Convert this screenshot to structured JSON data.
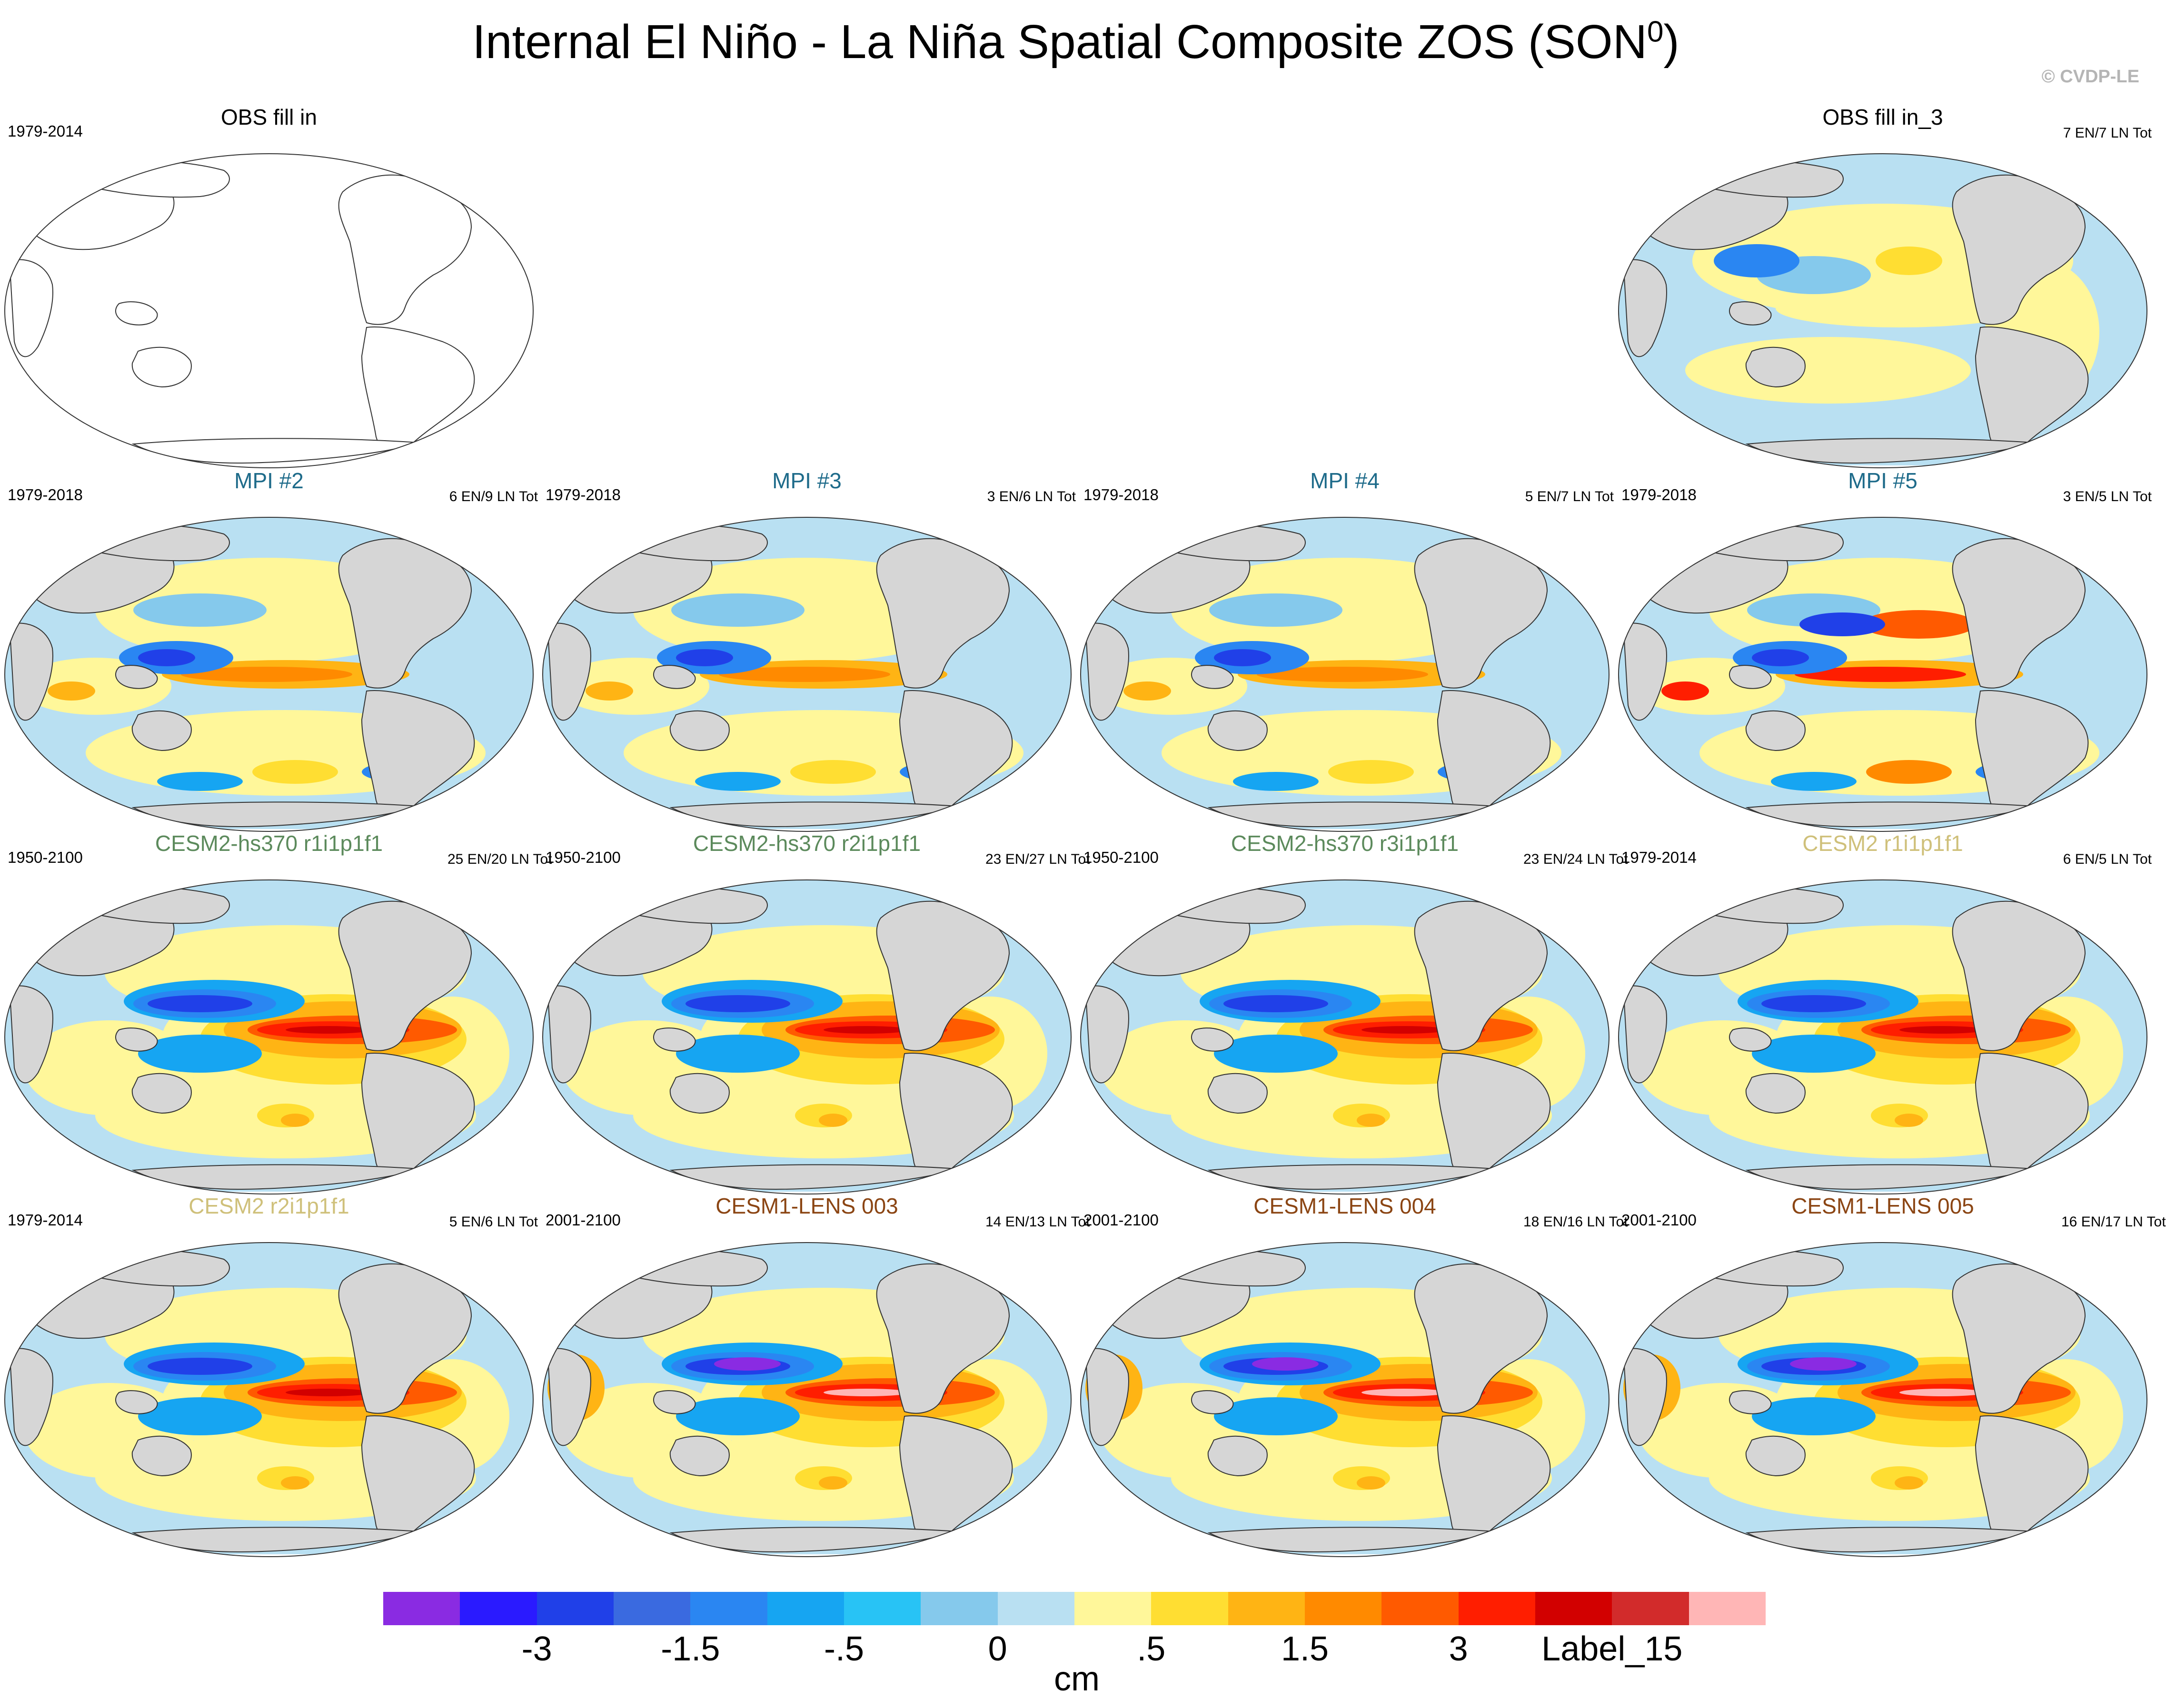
{
  "title": "Internal El Niño - La Niña Spatial Composite ZOS (SON",
  "title_sup": "0",
  "title_end": ")",
  "credit": "© CVDP-LE",
  "colors": {
    "title_obs": "#000000",
    "title_mpi": "#1e6b8a",
    "title_cesm2hs": "#5c8a5c",
    "title_cesm2": "#cfc07a",
    "title_lens": "#8b4513",
    "land": "#d6d6d6"
  },
  "panels": [
    {
      "id": "obs-fill-in",
      "title": "OBS fill in",
      "period": "1979-2014",
      "count": "",
      "color": "title_obs",
      "style": "empty",
      "row": 0,
      "col": 0
    },
    {
      "id": "obs-fill-in-3",
      "title": "OBS fill in_3",
      "period": "",
      "count": "7 EN/7 LN Tot",
      "color": "title_obs",
      "style": "weak",
      "row": 0,
      "col": 3
    },
    {
      "id": "mpi-2",
      "title": "MPI #2",
      "period": "1979-2018",
      "count": "6 EN/9 LN Tot",
      "color": "title_mpi",
      "style": "mpi",
      "row": 1,
      "col": 0
    },
    {
      "id": "mpi-3",
      "title": "MPI #3",
      "period": "1979-2018",
      "count": "3 EN/6 LN Tot",
      "color": "title_mpi",
      "style": "mpi",
      "row": 1,
      "col": 1
    },
    {
      "id": "mpi-4",
      "title": "MPI #4",
      "period": "1979-2018",
      "count": "5 EN/7 LN Tot",
      "color": "title_mpi",
      "style": "mpi",
      "row": 1,
      "col": 2
    },
    {
      "id": "mpi-5",
      "title": "MPI #5",
      "period": "1979-2018",
      "count": "3 EN/5 LN Tot",
      "color": "title_mpi",
      "style": "mpi-strong",
      "row": 1,
      "col": 3
    },
    {
      "id": "cesm2-hs370-r1",
      "title": "CESM2-hs370 r1i1p1f1",
      "period": "1950-2100",
      "count": "25 EN/20 LN Tot",
      "color": "title_cesm2hs",
      "style": "cesm",
      "row": 2,
      "col": 0
    },
    {
      "id": "cesm2-hs370-r2",
      "title": "CESM2-hs370 r2i1p1f1",
      "period": "1950-2100",
      "count": "23 EN/27 LN Tot",
      "color": "title_cesm2hs",
      "style": "cesm",
      "row": 2,
      "col": 1
    },
    {
      "id": "cesm2-hs370-r3",
      "title": "CESM2-hs370 r3i1p1f1",
      "period": "1950-2100",
      "count": "23 EN/24 LN Tot",
      "color": "title_cesm2hs",
      "style": "cesm",
      "row": 2,
      "col": 2
    },
    {
      "id": "cesm2-r1",
      "title": "CESM2 r1i1p1f1",
      "period": "1979-2014",
      "count": "6 EN/5 LN Tot",
      "color": "title_cesm2",
      "style": "cesm",
      "row": 2,
      "col": 3
    },
    {
      "id": "cesm2-r2",
      "title": "CESM2 r2i1p1f1",
      "period": "1979-2014",
      "count": "5 EN/6 LN Tot",
      "color": "title_cesm2",
      "style": "cesm",
      "row": 3,
      "col": 0
    },
    {
      "id": "cesm1-lens-003",
      "title": "CESM1-LENS 003",
      "period": "2001-2100",
      "count": "14 EN/13 LN Tot",
      "color": "title_lens",
      "style": "lens",
      "row": 3,
      "col": 1
    },
    {
      "id": "cesm1-lens-004",
      "title": "CESM1-LENS 004",
      "period": "2001-2100",
      "count": "18 EN/16 LN Tot",
      "color": "title_lens",
      "style": "lens",
      "row": 3,
      "col": 2
    },
    {
      "id": "cesm1-lens-005",
      "title": "CESM1-LENS 005",
      "period": "2001-2100",
      "count": "16 EN/17 LN Tot",
      "color": "title_lens",
      "style": "lens",
      "row": 3,
      "col": 3
    }
  ],
  "colorbar": {
    "colors": [
      "#8a2be2",
      "#2a1aff",
      "#2040e8",
      "#3a6ae0",
      "#2a86f2",
      "#16a5f2",
      "#28c3f5",
      "#85c9ec",
      "#b9e0f2",
      "#fff79a",
      "#ffde32",
      "#ffb414",
      "#ff8a00",
      "#ff5a00",
      "#ff1e00",
      "#d20000",
      "#d22b2b",
      "#ffb6b6"
    ],
    "labels": [
      "-3",
      "-1.5",
      "-.5",
      "0",
      ".5",
      "1.5",
      "3",
      "Label_15"
    ],
    "units": "cm"
  }
}
